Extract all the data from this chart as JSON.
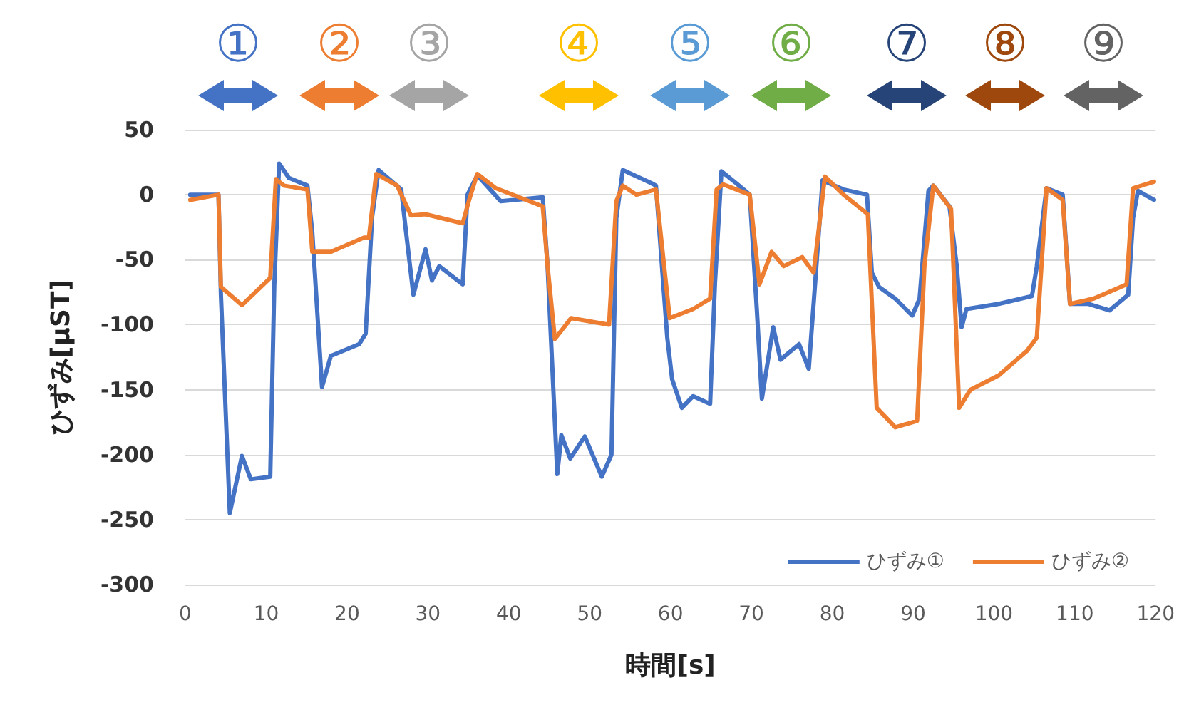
{
  "chart_data": {
    "type": "line",
    "xlabel": "時間[s]",
    "ylabel": "ひずみ[μST]",
    "xlim": [
      0,
      120
    ],
    "xticks": [
      0,
      10,
      20,
      30,
      40,
      50,
      60,
      70,
      80,
      90,
      100,
      110,
      120
    ],
    "ylim": [
      -300,
      50
    ],
    "yticks": [
      -300,
      -250,
      -200,
      -150,
      -100,
      -50,
      0,
      50
    ],
    "grid": "y",
    "legend": "bottom right",
    "marker": "none",
    "line_style": "solid",
    "annotations": [
      "①",
      "②",
      "③",
      "④",
      "⑤",
      "⑥",
      "⑦",
      "⑧",
      "⑨"
    ],
    "series": [
      {
        "name": "ひずみ①",
        "color": "#4472c4",
        "x": [
          0.6,
          4.1,
          4.4,
          5.5,
          7.0,
          8.1,
          10.5,
          11.0,
          11.6,
          12.8,
          15.1,
          15.7,
          16.9,
          18.0,
          21.5,
          22.3,
          23.1,
          23.9,
          26.7,
          27.3,
          28.2,
          29.7,
          30.5,
          31.4,
          34.3,
          34.9,
          36.1,
          39.0,
          44.2,
          44.8,
          46.0,
          46.5,
          47.6,
          49.4,
          51.5,
          52.7,
          53.3,
          54.1,
          57.6,
          58.2,
          59.6,
          60.2,
          61.4,
          62.8,
          64.9,
          65.5,
          66.3,
          68.1,
          69.8,
          70.7,
          71.3,
          72.7,
          73.6,
          75.9,
          77.1,
          77.9,
          78.8,
          81.4,
          84.3,
          84.9,
          85.8,
          87.8,
          89.9,
          90.8,
          91.9,
          92.5,
          94.5,
          95.4,
          96.0,
          96.6,
          100.6,
          104.7,
          105.3,
          106.5,
          108.5,
          109.4,
          111.7,
          114.3,
          116.6,
          117.2,
          117.8,
          119.8
        ],
        "values": [
          0,
          0,
          -77,
          -245,
          -201,
          -219,
          -217,
          -70,
          24,
          13,
          7,
          -29,
          -148,
          -124,
          -115,
          -107,
          -17,
          19,
          4,
          -29,
          -77,
          -42,
          -66,
          -55,
          -69,
          0,
          15,
          -5,
          -2,
          -55,
          -215,
          -185,
          -203,
          -186,
          -217,
          -200,
          -18,
          19,
          9,
          7,
          -110,
          -142,
          -164,
          -155,
          -161,
          -68,
          18,
          9,
          0,
          -91,
          -157,
          -102,
          -127,
          -115,
          -134,
          -67,
          11,
          4,
          0,
          -60,
          -71,
          -80,
          -93,
          -80,
          3,
          7,
          -9,
          -55,
          -102,
          -88,
          -84,
          -78,
          -55,
          5,
          0,
          -84,
          -84,
          -89,
          -77,
          -18,
          3,
          -4
        ]
      },
      {
        "name": "ひずみ②",
        "color": "#ed7d31",
        "x": [
          0.6,
          4.1,
          4.4,
          7.0,
          10.5,
          11.2,
          12.2,
          15.1,
          15.7,
          18.0,
          22.1,
          22.7,
          23.6,
          26.2,
          27.9,
          29.7,
          34.3,
          35.1,
          36.1,
          38.4,
          44.2,
          44.8,
          45.7,
          47.7,
          52.4,
          53.3,
          54.1,
          55.8,
          58.2,
          59.9,
          62.8,
          64.9,
          65.7,
          66.5,
          69.8,
          71.0,
          72.5,
          74.0,
          76.3,
          77.7,
          79.1,
          81.4,
          84.4,
          85.5,
          87.8,
          90.5,
          91.4,
          92.5,
          94.7,
          95.7,
          97.1,
          100.6,
          104.1,
          105.3,
          106.5,
          108.5,
          109.4,
          112.3,
          116.4,
          117.2,
          119.8
        ],
        "values": [
          -4,
          0,
          -71,
          -85,
          -64,
          12,
          7,
          4,
          -44,
          -44,
          -33,
          -33,
          16,
          7,
          -16,
          -15,
          -22,
          -4,
          16,
          5,
          -9,
          -55,
          -111,
          -95,
          -100,
          -5,
          7,
          0,
          4,
          -95,
          -88,
          -80,
          4,
          8,
          0,
          -69,
          -44,
          -55,
          -48,
          -60,
          14,
          0,
          -15,
          -164,
          -179,
          -174,
          -55,
          7,
          -11,
          -164,
          -150,
          -139,
          -120,
          -110,
          5,
          -4,
          -84,
          -80,
          -69,
          5,
          10
        ]
      }
    ]
  }
}
